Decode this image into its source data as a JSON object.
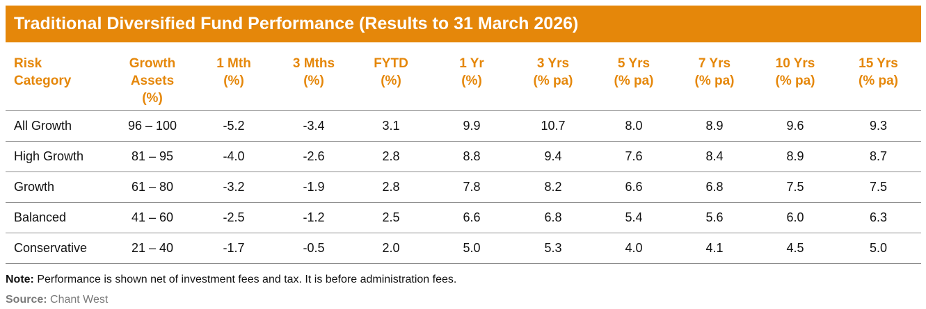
{
  "title": "Traditional Diversified Fund Performance (Results to 31 March 2026)",
  "colors": {
    "accent": "#E5870A",
    "text": "#111111",
    "source_text": "#7a7a7a",
    "rule": "#8c8c8c"
  },
  "chart_data": {
    "type": "table",
    "title": "Traditional Diversified Fund Performance (Results to 31 March 2026)",
    "columns": [
      [
        "Risk",
        "Category"
      ],
      [
        "Growth",
        "Assets",
        "(%)"
      ],
      [
        "1 Mth",
        "(%)"
      ],
      [
        "3 Mths",
        "(%)"
      ],
      [
        "FYTD",
        "(%)"
      ],
      [
        "1 Yr",
        "(%)"
      ],
      [
        "3 Yrs",
        "(% pa)"
      ],
      [
        "5 Yrs",
        "(% pa)"
      ],
      [
        "7 Yrs",
        "(% pa)"
      ],
      [
        "10 Yrs",
        "(% pa)"
      ],
      [
        "15 Yrs",
        "(% pa)"
      ]
    ],
    "rows": [
      [
        "All Growth",
        "96 – 100",
        "-5.2",
        "-3.4",
        "3.1",
        "9.9",
        "10.7",
        "8.0",
        "8.9",
        "9.6",
        "9.3"
      ],
      [
        "High Growth",
        "81 – 95",
        "-4.0",
        "-2.6",
        "2.8",
        "8.8",
        "9.4",
        "7.6",
        "8.4",
        "8.9",
        "8.7"
      ],
      [
        "Growth",
        "61 – 80",
        "-3.2",
        "-1.9",
        "2.8",
        "7.8",
        "8.2",
        "6.6",
        "6.8",
        "7.5",
        "7.5"
      ],
      [
        "Balanced",
        "41 – 60",
        "-2.5",
        "-1.2",
        "2.5",
        "6.6",
        "6.8",
        "5.4",
        "5.6",
        "6.0",
        "6.3"
      ],
      [
        "Conservative",
        "21 – 40",
        "-1.7",
        "-0.5",
        "2.0",
        "5.0",
        "5.3",
        "4.0",
        "4.1",
        "4.5",
        "5.0"
      ]
    ]
  },
  "note": {
    "label": "Note:",
    "text": " Performance is shown net of investment fees and tax. It is before administration fees."
  },
  "source": {
    "label": "Source:",
    "text": " Chant West"
  }
}
